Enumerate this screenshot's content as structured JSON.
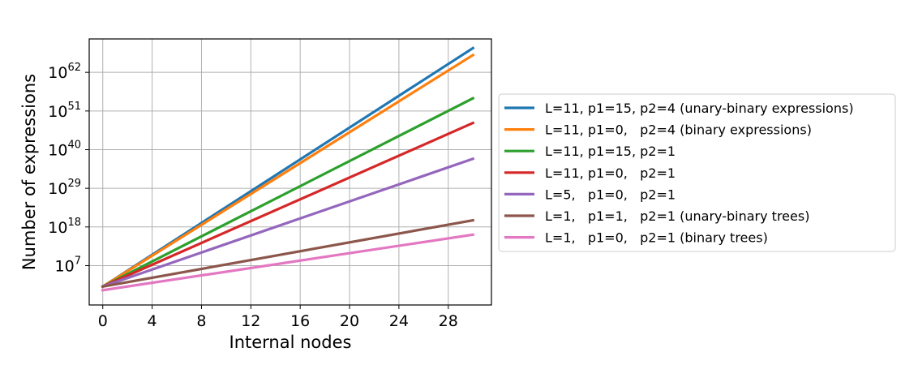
{
  "chart_data": {
    "type": "line",
    "title": "",
    "xlabel": "Internal nodes",
    "ylabel": "Number of expressions",
    "yscale": "log",
    "xlim": [
      -1.1,
      31.5
    ],
    "ylim_log10": [
      -4.2,
      71.5
    ],
    "x_ticks": [
      0,
      4,
      8,
      12,
      16,
      20,
      24,
      28
    ],
    "y_ticks": [
      {
        "exp": 7,
        "label_base": "10",
        "label_exp": "7"
      },
      {
        "exp": 18,
        "label_base": "10",
        "label_exp": "18"
      },
      {
        "exp": 29,
        "label_base": "10",
        "label_exp": "29"
      },
      {
        "exp": 40,
        "label_base": "10",
        "label_exp": "40"
      },
      {
        "exp": 51,
        "label_base": "10",
        "label_exp": "51"
      },
      {
        "exp": 62,
        "label_base": "10",
        "label_exp": "62"
      }
    ],
    "grid": true,
    "legend_position": "right, outside",
    "series": [
      {
        "name": "L=11, p1=15, p2=4 (unary-binary expressions)",
        "color": "#1f77b4",
        "x": [
          0,
          30
        ],
        "y_log10": [
          1.04,
          68.9
        ]
      },
      {
        "name": "L=11, p1=0,   p2=4 (binary expressions)",
        "color": "#ff7f0e",
        "x": [
          0,
          30
        ],
        "y_log10": [
          1.04,
          66.9
        ]
      },
      {
        "name": "L=11, p1=15, p2=1",
        "color": "#2ca02c",
        "x": [
          0,
          30
        ],
        "y_log10": [
          1.04,
          54.6
        ]
      },
      {
        "name": "L=11, p1=0,   p2=1",
        "color": "#d62728",
        "x": [
          0,
          30
        ],
        "y_log10": [
          1.04,
          47.6
        ]
      },
      {
        "name": "L=5,   p1=0,   p2=1",
        "color": "#9467bd",
        "x": [
          0,
          30
        ],
        "y_log10": [
          1.04,
          37.4
        ]
      },
      {
        "name": "L=1,   p1=1,   p2=1 (unary-binary trees)",
        "color": "#8c564b",
        "x": [
          0,
          30
        ],
        "y_log10": [
          1.04,
          19.9
        ]
      },
      {
        "name": "L=1,   p1=0,   p2=1 (binary trees)",
        "color": "#e377c2",
        "x": [
          0,
          30
        ],
        "y_log10": [
          0,
          15.8
        ]
      }
    ]
  }
}
